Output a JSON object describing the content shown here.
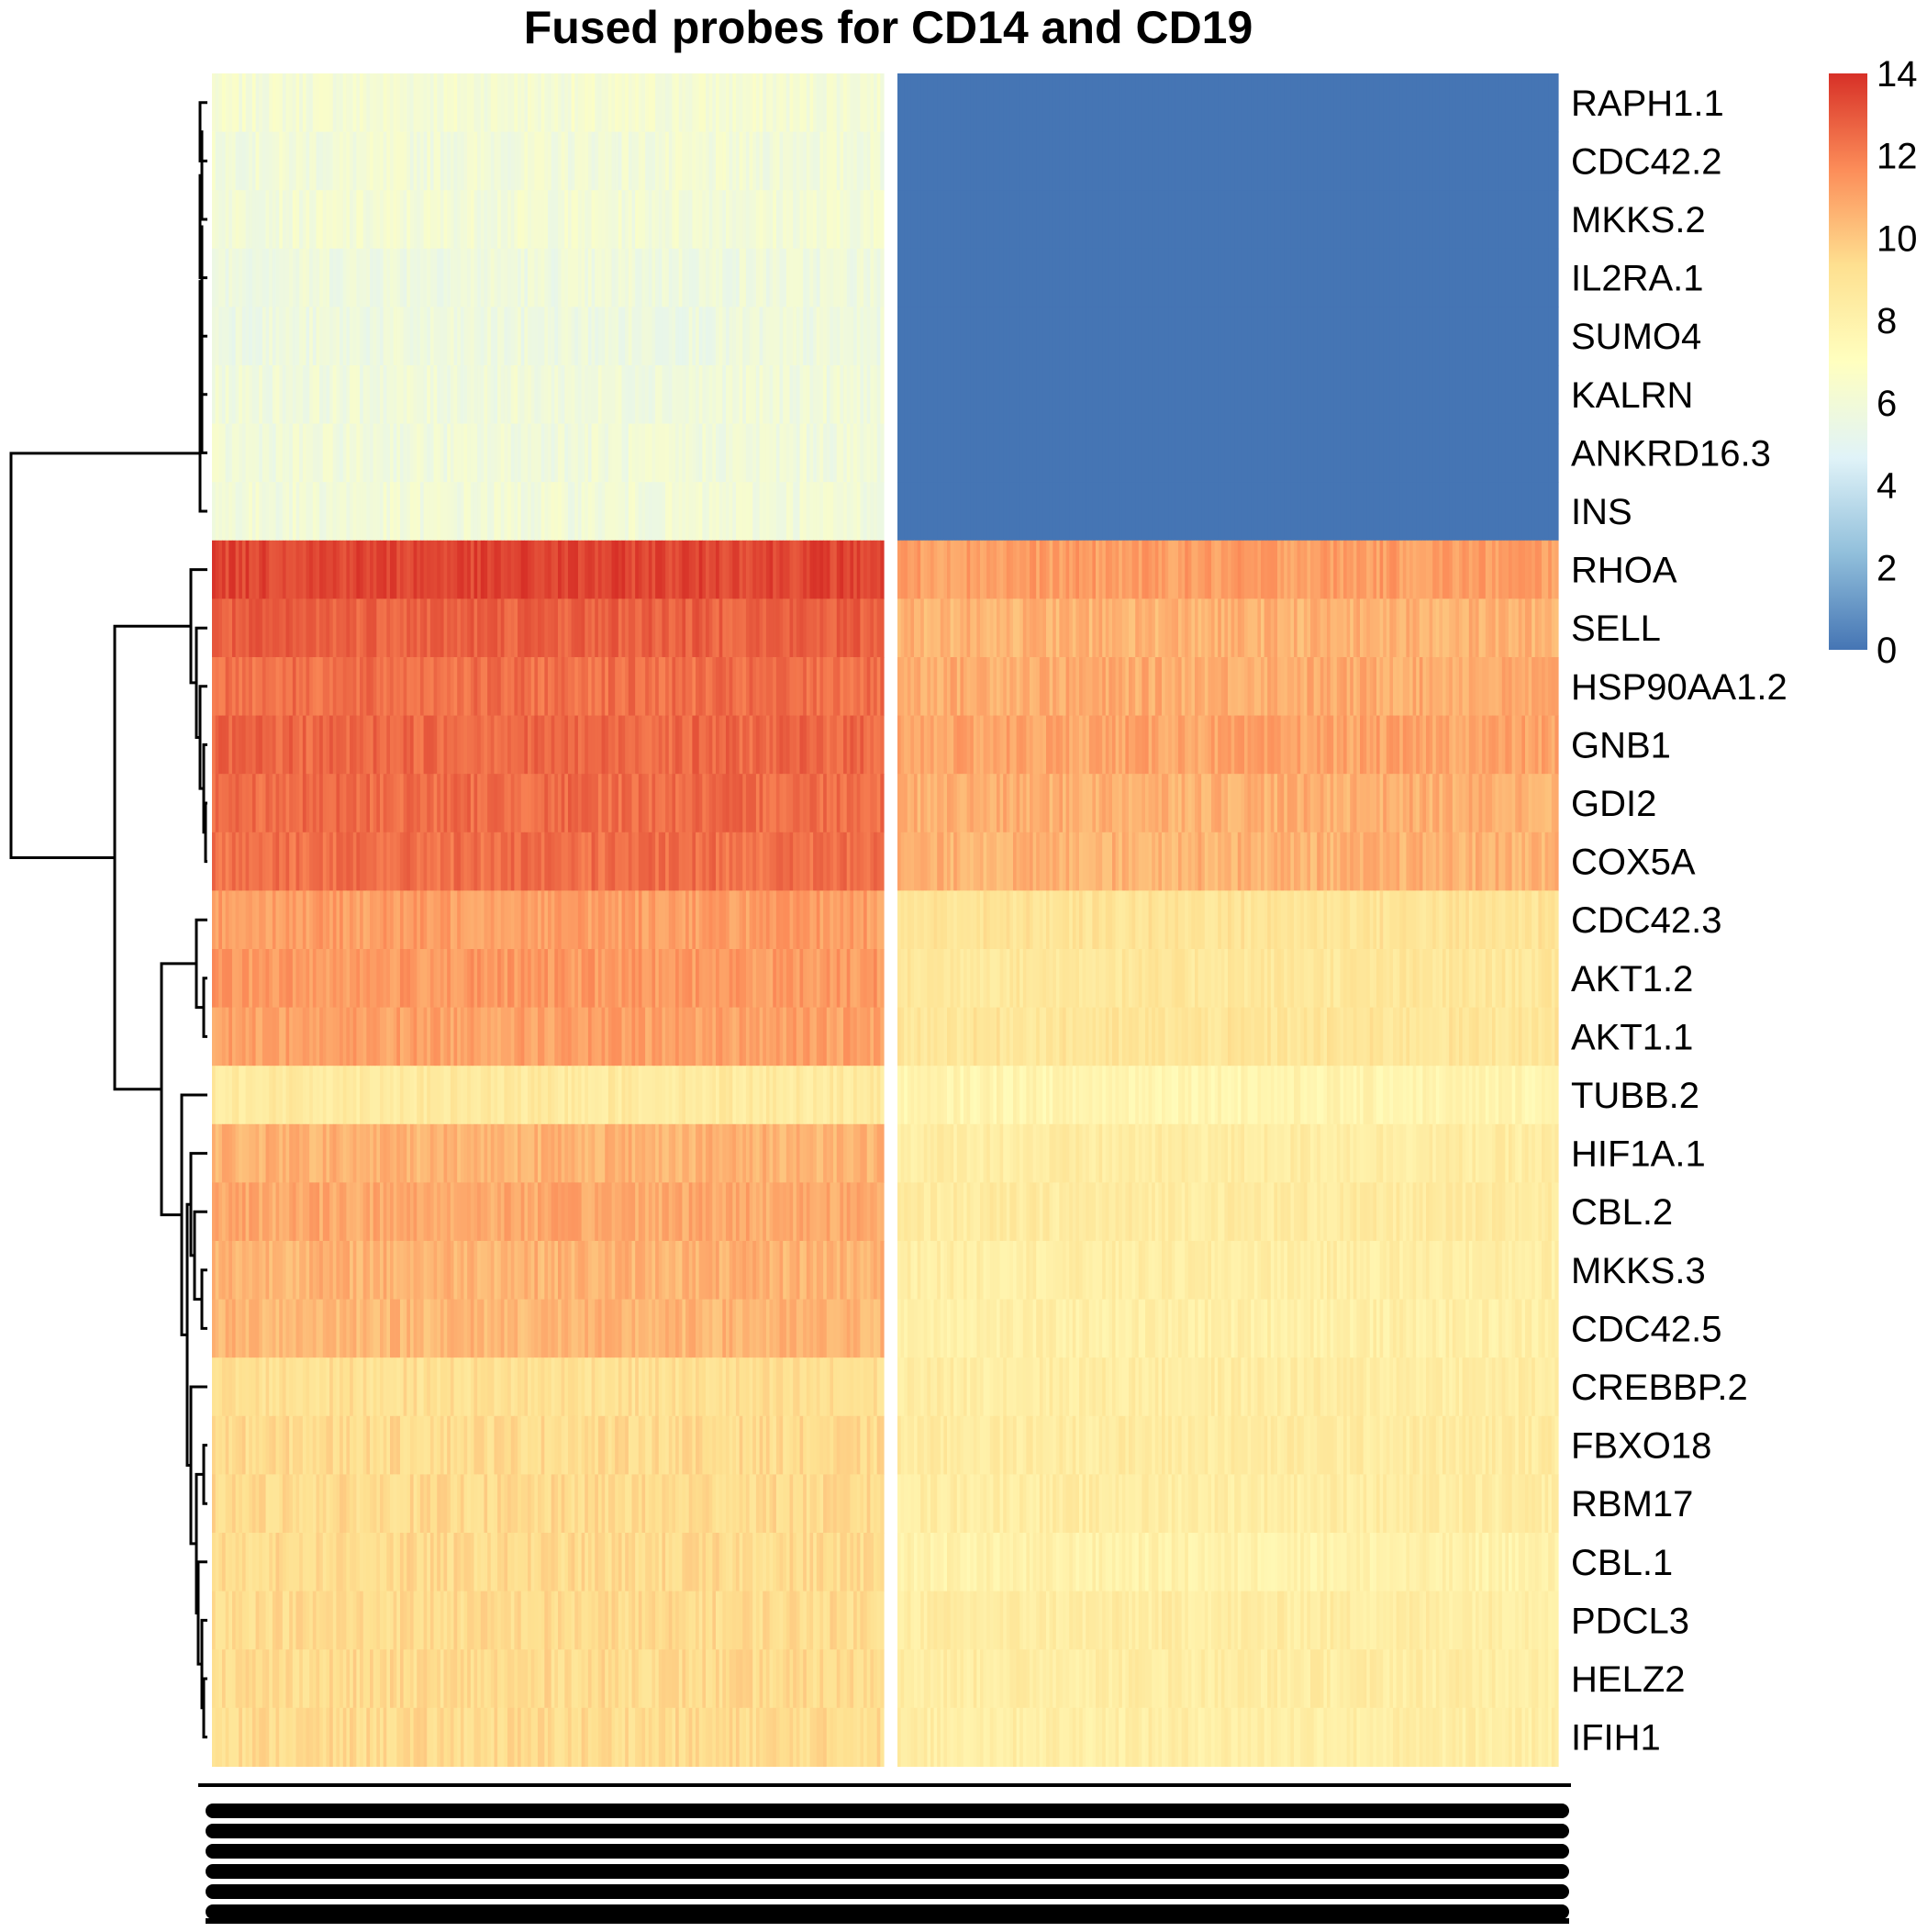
{
  "chart_data": {
    "type": "heatmap",
    "title": "Fused probes for CD14 and CD19",
    "rows": [
      "RAPH1.1",
      "CDC42.2",
      "MKKS.2",
      "IL2RA.1",
      "SUMO4",
      "KALRN",
      "ANKRD16.3",
      "INS",
      "RHOA",
      "SELL",
      "HSP90AA1.2",
      "GNB1",
      "GDI2",
      "COX5A",
      "CDC42.3",
      "AKT1.2",
      "AKT1.1",
      "TUBB.2",
      "HIF1A.1",
      "CBL.2",
      "MKKS.3",
      "CDC42.5",
      "CREBBP.2",
      "FBXO18",
      "RBM17",
      "CBL.1",
      "PDCL3",
      "HELZ2",
      "IFIH1"
    ],
    "column_groups": [
      {
        "columns": 200,
        "row_values": [
          6.2,
          6.0,
          6.1,
          5.8,
          5.7,
          5.9,
          5.9,
          6.0,
          13.5,
          12.8,
          12.4,
          12.6,
          12.5,
          12.4,
          11.2,
          11.3,
          11.1,
          8.6,
          10.6,
          10.9,
          10.6,
          10.5,
          9.2,
          9.4,
          9.4,
          9.4,
          9.4,
          9.4,
          9.4
        ]
      },
      {
        "columns": 200,
        "row_values": [
          0,
          0,
          0,
          0,
          0,
          0,
          0,
          0,
          11.2,
          10.6,
          10.8,
          11.0,
          10.7,
          10.6,
          9.0,
          8.8,
          8.9,
          7.8,
          8.4,
          8.5,
          8.3,
          8.2,
          8.4,
          8.5,
          8.4,
          8.0,
          8.4,
          8.4,
          8.3
        ]
      }
    ],
    "colorbar": {
      "min": 0,
      "max": 14,
      "ticks": [
        "0",
        "2",
        "4",
        "6",
        "8",
        "10",
        "12",
        "14"
      ],
      "colors": [
        "#4575b4",
        "#91bfdb",
        "#e0f3f8",
        "#ffffbf",
        "#fee090",
        "#fc8d59",
        "#d73027"
      ]
    },
    "legend_position": "top-right",
    "row_dendrogram": true,
    "column_dendrogram": false
  }
}
